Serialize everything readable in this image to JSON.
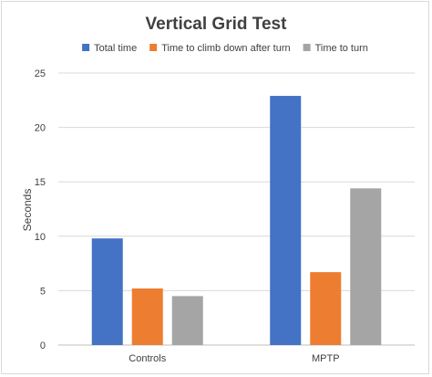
{
  "chart_data": {
    "type": "bar",
    "title": "Vertical Grid Test",
    "xlabel": "",
    "ylabel": "Seconds",
    "categories": [
      "Controls",
      "MPTP"
    ],
    "series": [
      {
        "name": "Total time",
        "values": [
          9.8,
          22.9
        ],
        "color": "#4472C4"
      },
      {
        "name": "Time to climb down after turn",
        "values": [
          5.2,
          6.7
        ],
        "color": "#ED7D31"
      },
      {
        "name": "Time to turn",
        "values": [
          4.5,
          14.4
        ],
        "color": "#A5A5A5"
      }
    ],
    "ylim": [
      0,
      25
    ],
    "yticks": [
      0,
      5,
      10,
      15,
      20,
      25
    ],
    "grid": true,
    "legend": "top"
  }
}
